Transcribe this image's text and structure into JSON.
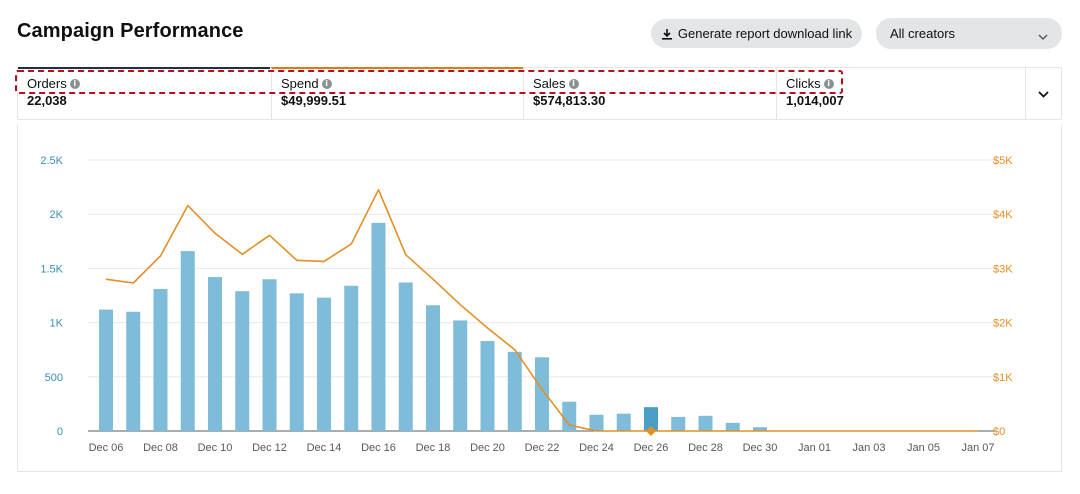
{
  "header": {
    "title": "Campaign Performance",
    "report_button_label": "Generate report download link",
    "creator_select_value": "All creators"
  },
  "metrics": [
    {
      "label": "Orders",
      "value": "22,038",
      "accent": "#232f3e"
    },
    {
      "label": "Spend",
      "value": "$49,999.51",
      "accent": "#e47911"
    },
    {
      "label": "Sales",
      "value": "$574,813.30",
      "accent": ""
    },
    {
      "label": "Clicks",
      "value": "1,014,007",
      "accent": ""
    }
  ],
  "icons": {
    "download": "download-icon",
    "info": "info-icon",
    "chevron": "chevron-down-icon"
  },
  "colors": {
    "bar": "#7fbcd9",
    "bar_highlight": "#4a9fc8",
    "line": "#e48f23",
    "left_axis": "#3a8fb7",
    "right_axis": "#e48f23",
    "grid": "#e7eaea",
    "x_axis": "#555b5b"
  },
  "chart_data": {
    "type": "bar+line",
    "title": "",
    "categories": [
      "Dec 06",
      "Dec 07",
      "Dec 08",
      "Dec 09",
      "Dec 10",
      "Dec 11",
      "Dec 12",
      "Dec 13",
      "Dec 14",
      "Dec 15",
      "Dec 16",
      "Dec 17",
      "Dec 18",
      "Dec 19",
      "Dec 20",
      "Dec 21",
      "Dec 22",
      "Dec 23",
      "Dec 24",
      "Dec 25",
      "Dec 26",
      "Dec 27",
      "Dec 28",
      "Dec 29",
      "Dec 30",
      "Dec 31",
      "Jan 01",
      "Jan 02",
      "Jan 03",
      "Jan 04",
      "Jan 05",
      "Jan 06",
      "Jan 07"
    ],
    "x_tick_labels": [
      "Dec 06",
      "Dec 08",
      "Dec 10",
      "Dec 12",
      "Dec 14",
      "Dec 16",
      "Dec 18",
      "Dec 20",
      "Dec 22",
      "Dec 24",
      "Dec 26",
      "Dec 28",
      "Dec 30",
      "Jan 01",
      "Jan 03",
      "Jan 05",
      "Jan 07"
    ],
    "highlight_index": 20,
    "series": [
      {
        "name": "Orders",
        "axis": "left",
        "kind": "bar",
        "values": [
          1120,
          1100,
          1310,
          1660,
          1420,
          1290,
          1400,
          1270,
          1230,
          1340,
          1920,
          1370,
          1160,
          1020,
          830,
          730,
          680,
          270,
          150,
          160,
          220,
          130,
          140,
          75,
          35,
          0,
          0,
          0,
          0,
          0,
          0,
          0,
          0
        ]
      },
      {
        "name": "Sales",
        "axis": "right",
        "kind": "line",
        "values": [
          2800,
          2730,
          3230,
          4160,
          3650,
          3260,
          3610,
          3150,
          3130,
          3450,
          4450,
          3250,
          2800,
          2330,
          1900,
          1500,
          770,
          110,
          0,
          0,
          0,
          0,
          0,
          0,
          0,
          0,
          0,
          0,
          0,
          0,
          0,
          0,
          0
        ]
      }
    ],
    "y_left": {
      "min": 0,
      "max": 2500,
      "ticks": [
        0,
        500,
        1000,
        1500,
        2000,
        2500
      ],
      "tick_labels": [
        "0",
        "500",
        "1K",
        "1.5K",
        "2K",
        "2.5K"
      ]
    },
    "y_right": {
      "min": 0,
      "max": 5000,
      "ticks": [
        0,
        1000,
        2000,
        3000,
        4000,
        5000
      ],
      "tick_labels": [
        "$0",
        "$1K",
        "$2K",
        "$3K",
        "$4K",
        "$5K"
      ]
    },
    "grid": true
  }
}
